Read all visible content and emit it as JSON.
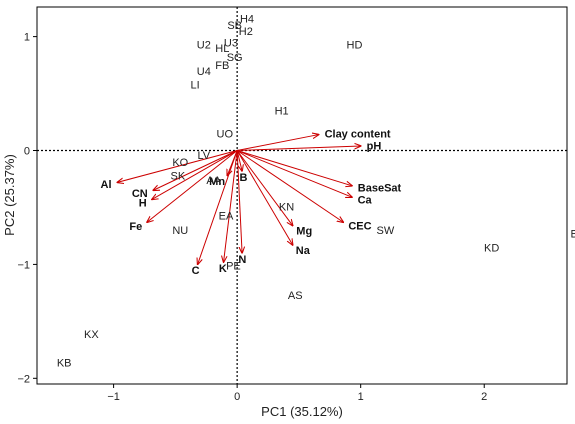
{
  "chart_data": {
    "type": "scatter",
    "subtype": "biplot",
    "title": "",
    "xlabel": "PC1 (35.12%)",
    "ylabel": "PC2 (25.37%)",
    "xlim": [
      -1.62,
      2.67
    ],
    "ylim": [
      -2.05,
      1.26
    ],
    "xticks": [
      -1,
      0,
      1,
      2
    ],
    "yticks": [
      -2,
      -1,
      0,
      1
    ],
    "xtick_labels": [
      "−1",
      "0",
      "1",
      "2"
    ],
    "ytick_labels": [
      "−2",
      "−1",
      "0",
      "1"
    ],
    "reference_lines": {
      "x": 0,
      "y": 0,
      "style": "dotted"
    },
    "grid": false,
    "colors": {
      "axes": "#000000",
      "vectors": "#cc0000",
      "text": "#222222"
    },
    "sites": [
      {
        "label": "H4",
        "x": 0.08,
        "y": 1.16
      },
      {
        "label": "SB",
        "x": -0.02,
        "y": 1.1
      },
      {
        "label": "H2",
        "x": 0.07,
        "y": 1.05
      },
      {
        "label": "HD",
        "x": 0.95,
        "y": 0.93
      },
      {
        "label": "U2",
        "x": -0.27,
        "y": 0.93
      },
      {
        "label": "U3",
        "x": -0.05,
        "y": 0.95
      },
      {
        "label": "HL",
        "x": -0.12,
        "y": 0.9
      },
      {
        "label": "SG",
        "x": -0.02,
        "y": 0.82
      },
      {
        "label": "FB",
        "x": -0.12,
        "y": 0.75
      },
      {
        "label": "U4",
        "x": -0.27,
        "y": 0.7
      },
      {
        "label": "LI",
        "x": -0.34,
        "y": 0.58
      },
      {
        "label": "H1",
        "x": 0.36,
        "y": 0.35
      },
      {
        "label": "UO",
        "x": -0.1,
        "y": 0.15
      },
      {
        "label": "LV",
        "x": -0.27,
        "y": -0.04
      },
      {
        "label": "KO",
        "x": -0.46,
        "y": -0.1
      },
      {
        "label": "SK",
        "x": -0.48,
        "y": -0.22
      },
      {
        "label": "AA",
        "x": -0.19,
        "y": -0.26
      },
      {
        "label": "EA",
        "x": -0.09,
        "y": -0.57
      },
      {
        "label": "NU",
        "x": -0.46,
        "y": -0.7
      },
      {
        "label": "KN",
        "x": 0.4,
        "y": -0.49
      },
      {
        "label": "SW",
        "x": 1.2,
        "y": -0.7
      },
      {
        "label": "KD",
        "x": 2.06,
        "y": -0.85
      },
      {
        "label": "BH",
        "x": 2.76,
        "y": -0.73
      },
      {
        "label": "PE",
        "x": -0.03,
        "y": -1.01
      },
      {
        "label": "AS",
        "x": 0.47,
        "y": -1.27
      },
      {
        "label": "KX",
        "x": -1.18,
        "y": -1.61
      },
      {
        "label": "KB",
        "x": -1.4,
        "y": -1.86
      }
    ],
    "vectors": [
      {
        "label": "Clay content",
        "x": 0.66,
        "y": 0.14
      },
      {
        "label": "pH",
        "x": 1.0,
        "y": 0.04
      },
      {
        "label": "BaseSat",
        "x": 0.93,
        "y": -0.31
      },
      {
        "label": "Ca",
        "x": 0.93,
        "y": -0.41
      },
      {
        "label": "CEC",
        "x": 0.86,
        "y": -0.63
      },
      {
        "label": "Mg",
        "x": 0.45,
        "y": -0.66
      },
      {
        "label": "Na",
        "x": 0.45,
        "y": -0.83
      },
      {
        "label": "N",
        "x": 0.04,
        "y": -0.9
      },
      {
        "label": "K",
        "x": -0.11,
        "y": -0.98
      },
      {
        "label": "C",
        "x": -0.32,
        "y": -1.0
      },
      {
        "label": "B",
        "x": 0.04,
        "y": -0.18
      },
      {
        "label": "Mn",
        "x": -0.08,
        "y": -0.22
      },
      {
        "label": "Al",
        "x": -0.97,
        "y": -0.28
      },
      {
        "label": "CN",
        "x": -0.68,
        "y": -0.35
      },
      {
        "label": "H",
        "x": -0.69,
        "y": -0.43
      },
      {
        "label": "Fe",
        "x": -0.73,
        "y": -0.63
      }
    ]
  }
}
